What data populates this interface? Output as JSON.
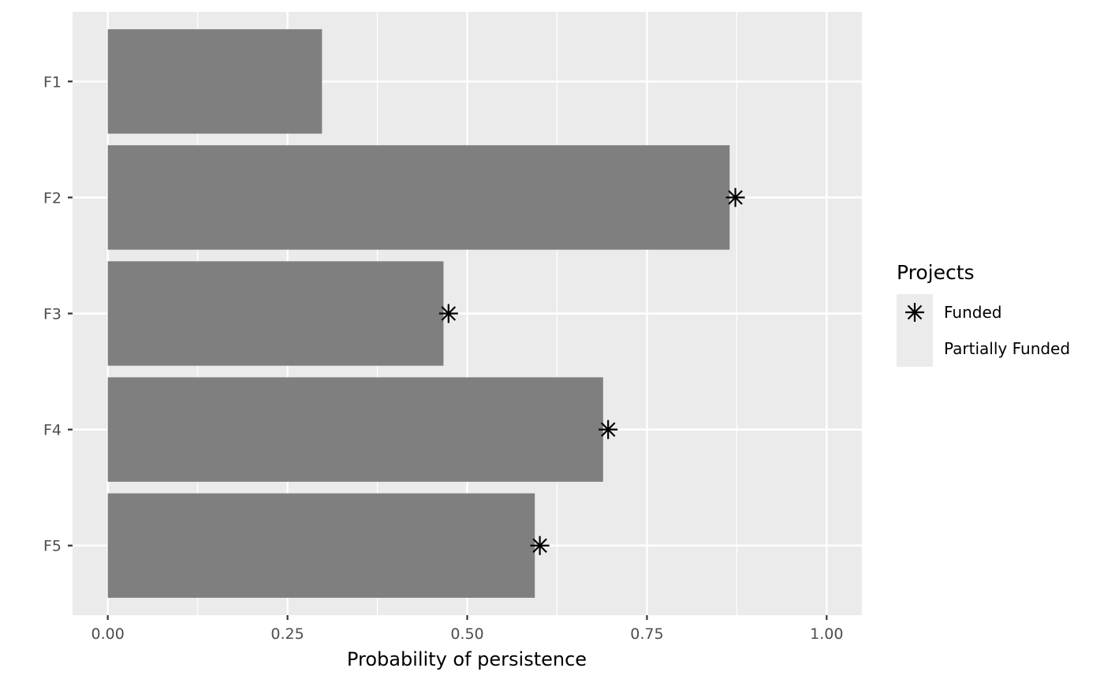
{
  "chart_data": {
    "type": "bar",
    "orientation": "horizontal",
    "categories": [
      "F1",
      "F2",
      "F3",
      "F4",
      "F5"
    ],
    "values": [
      0.298,
      0.865,
      0.467,
      0.689,
      0.594
    ],
    "funded_markers": [
      null,
      0.873,
      0.474,
      0.696,
      0.601
    ],
    "xlabel": "Probability of persistence",
    "ylabel": "",
    "xlim": [
      -0.049,
      1.049
    ],
    "xticks": [
      0,
      0.25,
      0.5,
      0.75,
      1
    ],
    "xtick_labels": [
      "0.00",
      "0.25",
      "0.50",
      "0.75",
      "1.00"
    ],
    "grid": true,
    "legend": {
      "title": "Projects",
      "position": "right",
      "entries": [
        {
          "label": "Funded",
          "symbol": "asterisk"
        },
        {
          "label": "Partially Funded",
          "symbol": "none"
        }
      ]
    },
    "colors": {
      "bar": "#7f7f7f",
      "panel": "#ebebeb",
      "grid": "#ffffff",
      "marker": "#000000"
    }
  }
}
